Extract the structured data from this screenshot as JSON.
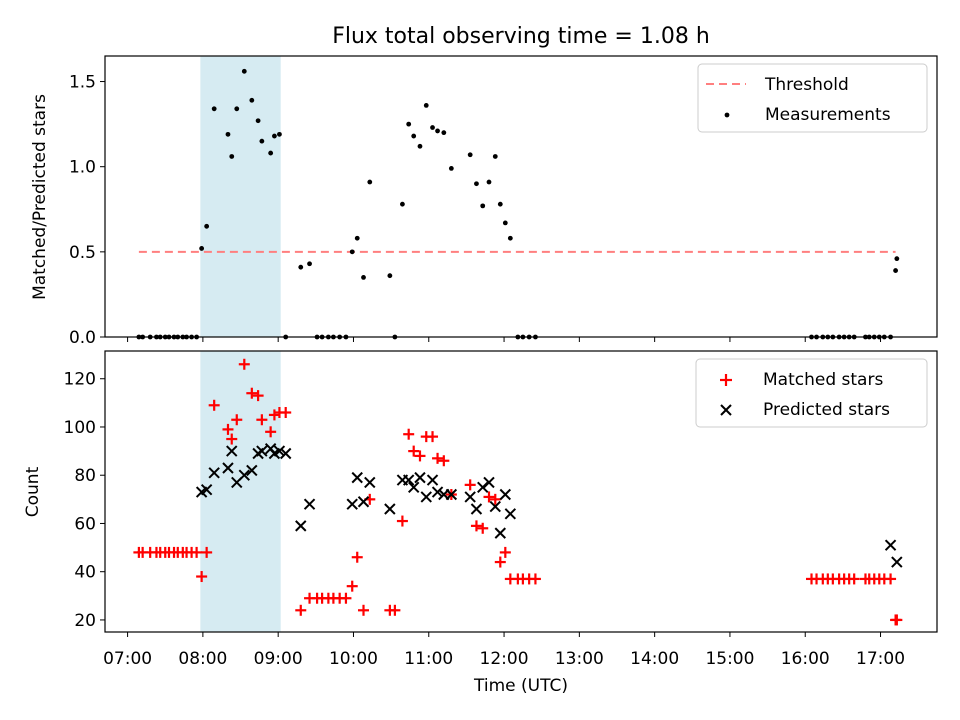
{
  "figure": {
    "title": "Flux total observing time = 1.08 h"
  },
  "x_axis": {
    "label": "Time (UTC)",
    "ticks": [
      "07:00",
      "08:00",
      "09:00",
      "10:00",
      "11:00",
      "12:00",
      "13:00",
      "14:00",
      "15:00",
      "16:00",
      "17:00"
    ],
    "range_hours": [
      6.7,
      17.75
    ]
  },
  "colors": {
    "threshold": "#ff7f7f",
    "measurements": "#000000",
    "matched": "#ff0000",
    "predicted": "#000000",
    "span": "#add8e6"
  },
  "chart_data": [
    {
      "type": "scatter",
      "panel": "top",
      "ylabel": "Matched/Predicted stars",
      "ylim": [
        0,
        1.65
      ],
      "yticks": [
        "0.0",
        "0.5",
        "1.0",
        "1.5"
      ],
      "highlight_span": [
        "07:58",
        "09:02"
      ],
      "legend": {
        "placement": "top-right",
        "entries": [
          "Threshold",
          "Measurements"
        ]
      },
      "threshold": {
        "name": "Threshold",
        "y": 0.5,
        "x": [
          "07:09",
          "17:12"
        ]
      },
      "series": [
        {
          "name": "Measurements",
          "x": [
            "07:09",
            "07:12",
            "07:18",
            "07:23",
            "07:26",
            "07:30",
            "07:33",
            "07:37",
            "07:40",
            "07:44",
            "07:47",
            "07:51",
            "07:55",
            "07:59",
            "08:03",
            "08:09",
            "08:20",
            "08:23",
            "08:27",
            "08:33",
            "08:39",
            "08:44",
            "08:47",
            "08:54",
            "08:57",
            "09:01",
            "09:06",
            "09:18",
            "09:25",
            "09:31",
            "09:35",
            "09:40",
            "09:44",
            "09:49",
            "09:54",
            "09:59",
            "10:03",
            "10:08",
            "10:13",
            "10:29",
            "10:33",
            "10:39",
            "10:44",
            "10:48",
            "10:53",
            "10:58",
            "11:03",
            "11:07",
            "11:12",
            "11:18",
            "11:33",
            "11:38",
            "11:43",
            "11:48",
            "11:53",
            "11:57",
            "12:01",
            "12:05",
            "12:11",
            "12:15",
            "12:20",
            "12:25",
            "16:05",
            "16:09",
            "16:14",
            "16:18",
            "16:22",
            "16:27",
            "16:31",
            "16:35",
            "16:39",
            "16:48",
            "16:51",
            "16:55",
            "16:59",
            "17:03",
            "17:08",
            "17:12",
            "17:13"
          ],
          "y": [
            0.0,
            0.0,
            0.0,
            0.0,
            0.0,
            0.0,
            0.0,
            0.0,
            0.0,
            0.0,
            0.0,
            0.0,
            0.0,
            0.52,
            0.65,
            1.34,
            1.19,
            1.06,
            1.34,
            1.56,
            1.39,
            1.27,
            1.15,
            1.08,
            1.18,
            1.19,
            0.0,
            0.41,
            0.43,
            0.0,
            0.0,
            0.0,
            0.0,
            0.0,
            0.0,
            0.5,
            0.58,
            0.35,
            0.91,
            0.36,
            0.0,
            0.78,
            1.25,
            1.18,
            1.12,
            1.36,
            1.23,
            1.21,
            1.2,
            0.99,
            1.07,
            0.9,
            0.77,
            0.91,
            1.06,
            0.78,
            0.67,
            0.58,
            0.0,
            0.0,
            0.0,
            0.0,
            0.0,
            0.0,
            0.0,
            0.0,
            0.0,
            0.0,
            0.0,
            0.0,
            0.0,
            0.0,
            0.0,
            0.0,
            0.0,
            0.0,
            0.0,
            0.39,
            0.46
          ]
        }
      ]
    },
    {
      "type": "scatter",
      "panel": "bottom",
      "xlabel": "Time (UTC)",
      "ylabel": "Count",
      "ylim": [
        15,
        131.5
      ],
      "yticks": [
        "20",
        "40",
        "60",
        "80",
        "100",
        "120"
      ],
      "highlight_span": [
        "07:58",
        "09:02"
      ],
      "legend": {
        "placement": "top-right",
        "entries": [
          "Matched stars",
          "Predicted stars"
        ]
      },
      "series": [
        {
          "name": "Matched stars",
          "marker": "plus",
          "x": [
            "07:09",
            "07:12",
            "07:18",
            "07:23",
            "07:26",
            "07:30",
            "07:33",
            "07:37",
            "07:40",
            "07:44",
            "07:47",
            "07:51",
            "07:55",
            "07:59",
            "08:03",
            "08:09",
            "08:20",
            "08:23",
            "08:27",
            "08:33",
            "08:39",
            "08:44",
            "08:47",
            "08:54",
            "08:57",
            "09:01",
            "09:06",
            "09:18",
            "09:25",
            "09:31",
            "09:35",
            "09:40",
            "09:44",
            "09:49",
            "09:54",
            "09:59",
            "10:03",
            "10:08",
            "10:13",
            "10:29",
            "10:33",
            "10:39",
            "10:44",
            "10:48",
            "10:53",
            "10:58",
            "11:03",
            "11:07",
            "11:12",
            "11:18",
            "11:33",
            "11:38",
            "11:43",
            "11:48",
            "11:53",
            "11:57",
            "12:01",
            "12:05",
            "12:11",
            "12:15",
            "12:20",
            "12:25",
            "16:05",
            "16:09",
            "16:14",
            "16:18",
            "16:22",
            "16:27",
            "16:31",
            "16:35",
            "16:39",
            "16:48",
            "16:51",
            "16:55",
            "16:59",
            "17:03",
            "17:08",
            "17:12",
            "17:13"
          ],
          "y": [
            48,
            48,
            48,
            48,
            48,
            48,
            48,
            48,
            48,
            48,
            48,
            48,
            48,
            38,
            48,
            109,
            99,
            95,
            103,
            126,
            114,
            113,
            103,
            98,
            105,
            106,
            106,
            24,
            29,
            29,
            29,
            29,
            29,
            29,
            29,
            34,
            46,
            24,
            70,
            24,
            24,
            61,
            97,
            90,
            88,
            96,
            96,
            87,
            86,
            72,
            76,
            59,
            58,
            71,
            70,
            44,
            48,
            37,
            37,
            37,
            37,
            37,
            37,
            37,
            37,
            37,
            37,
            37,
            37,
            37,
            37,
            37,
            37,
            37,
            37,
            37,
            37,
            20,
            20
          ]
        },
        {
          "name": "Predicted stars",
          "marker": "x",
          "x": [
            "07:59",
            "08:03",
            "08:09",
            "08:20",
            "08:23",
            "08:27",
            "08:33",
            "08:39",
            "08:44",
            "08:47",
            "08:54",
            "08:57",
            "09:01",
            "09:06",
            "09:18",
            "09:25",
            "09:59",
            "10:03",
            "10:08",
            "10:13",
            "10:29",
            "10:39",
            "10:44",
            "10:48",
            "10:53",
            "10:58",
            "11:03",
            "11:07",
            "11:12",
            "11:18",
            "11:33",
            "11:38",
            "11:43",
            "11:48",
            "11:53",
            "11:57",
            "12:01",
            "12:05",
            "17:08",
            "17:13"
          ],
          "y": [
            73,
            74,
            81,
            83,
            90,
            77,
            80,
            82,
            89,
            90,
            91,
            89,
            90,
            89,
            59,
            68,
            68,
            79,
            69,
            77,
            66,
            78,
            78,
            75,
            79,
            71,
            78,
            73,
            72,
            72,
            71,
            66,
            75,
            77,
            67,
            56,
            72,
            64,
            51,
            44
          ]
        }
      ]
    }
  ]
}
